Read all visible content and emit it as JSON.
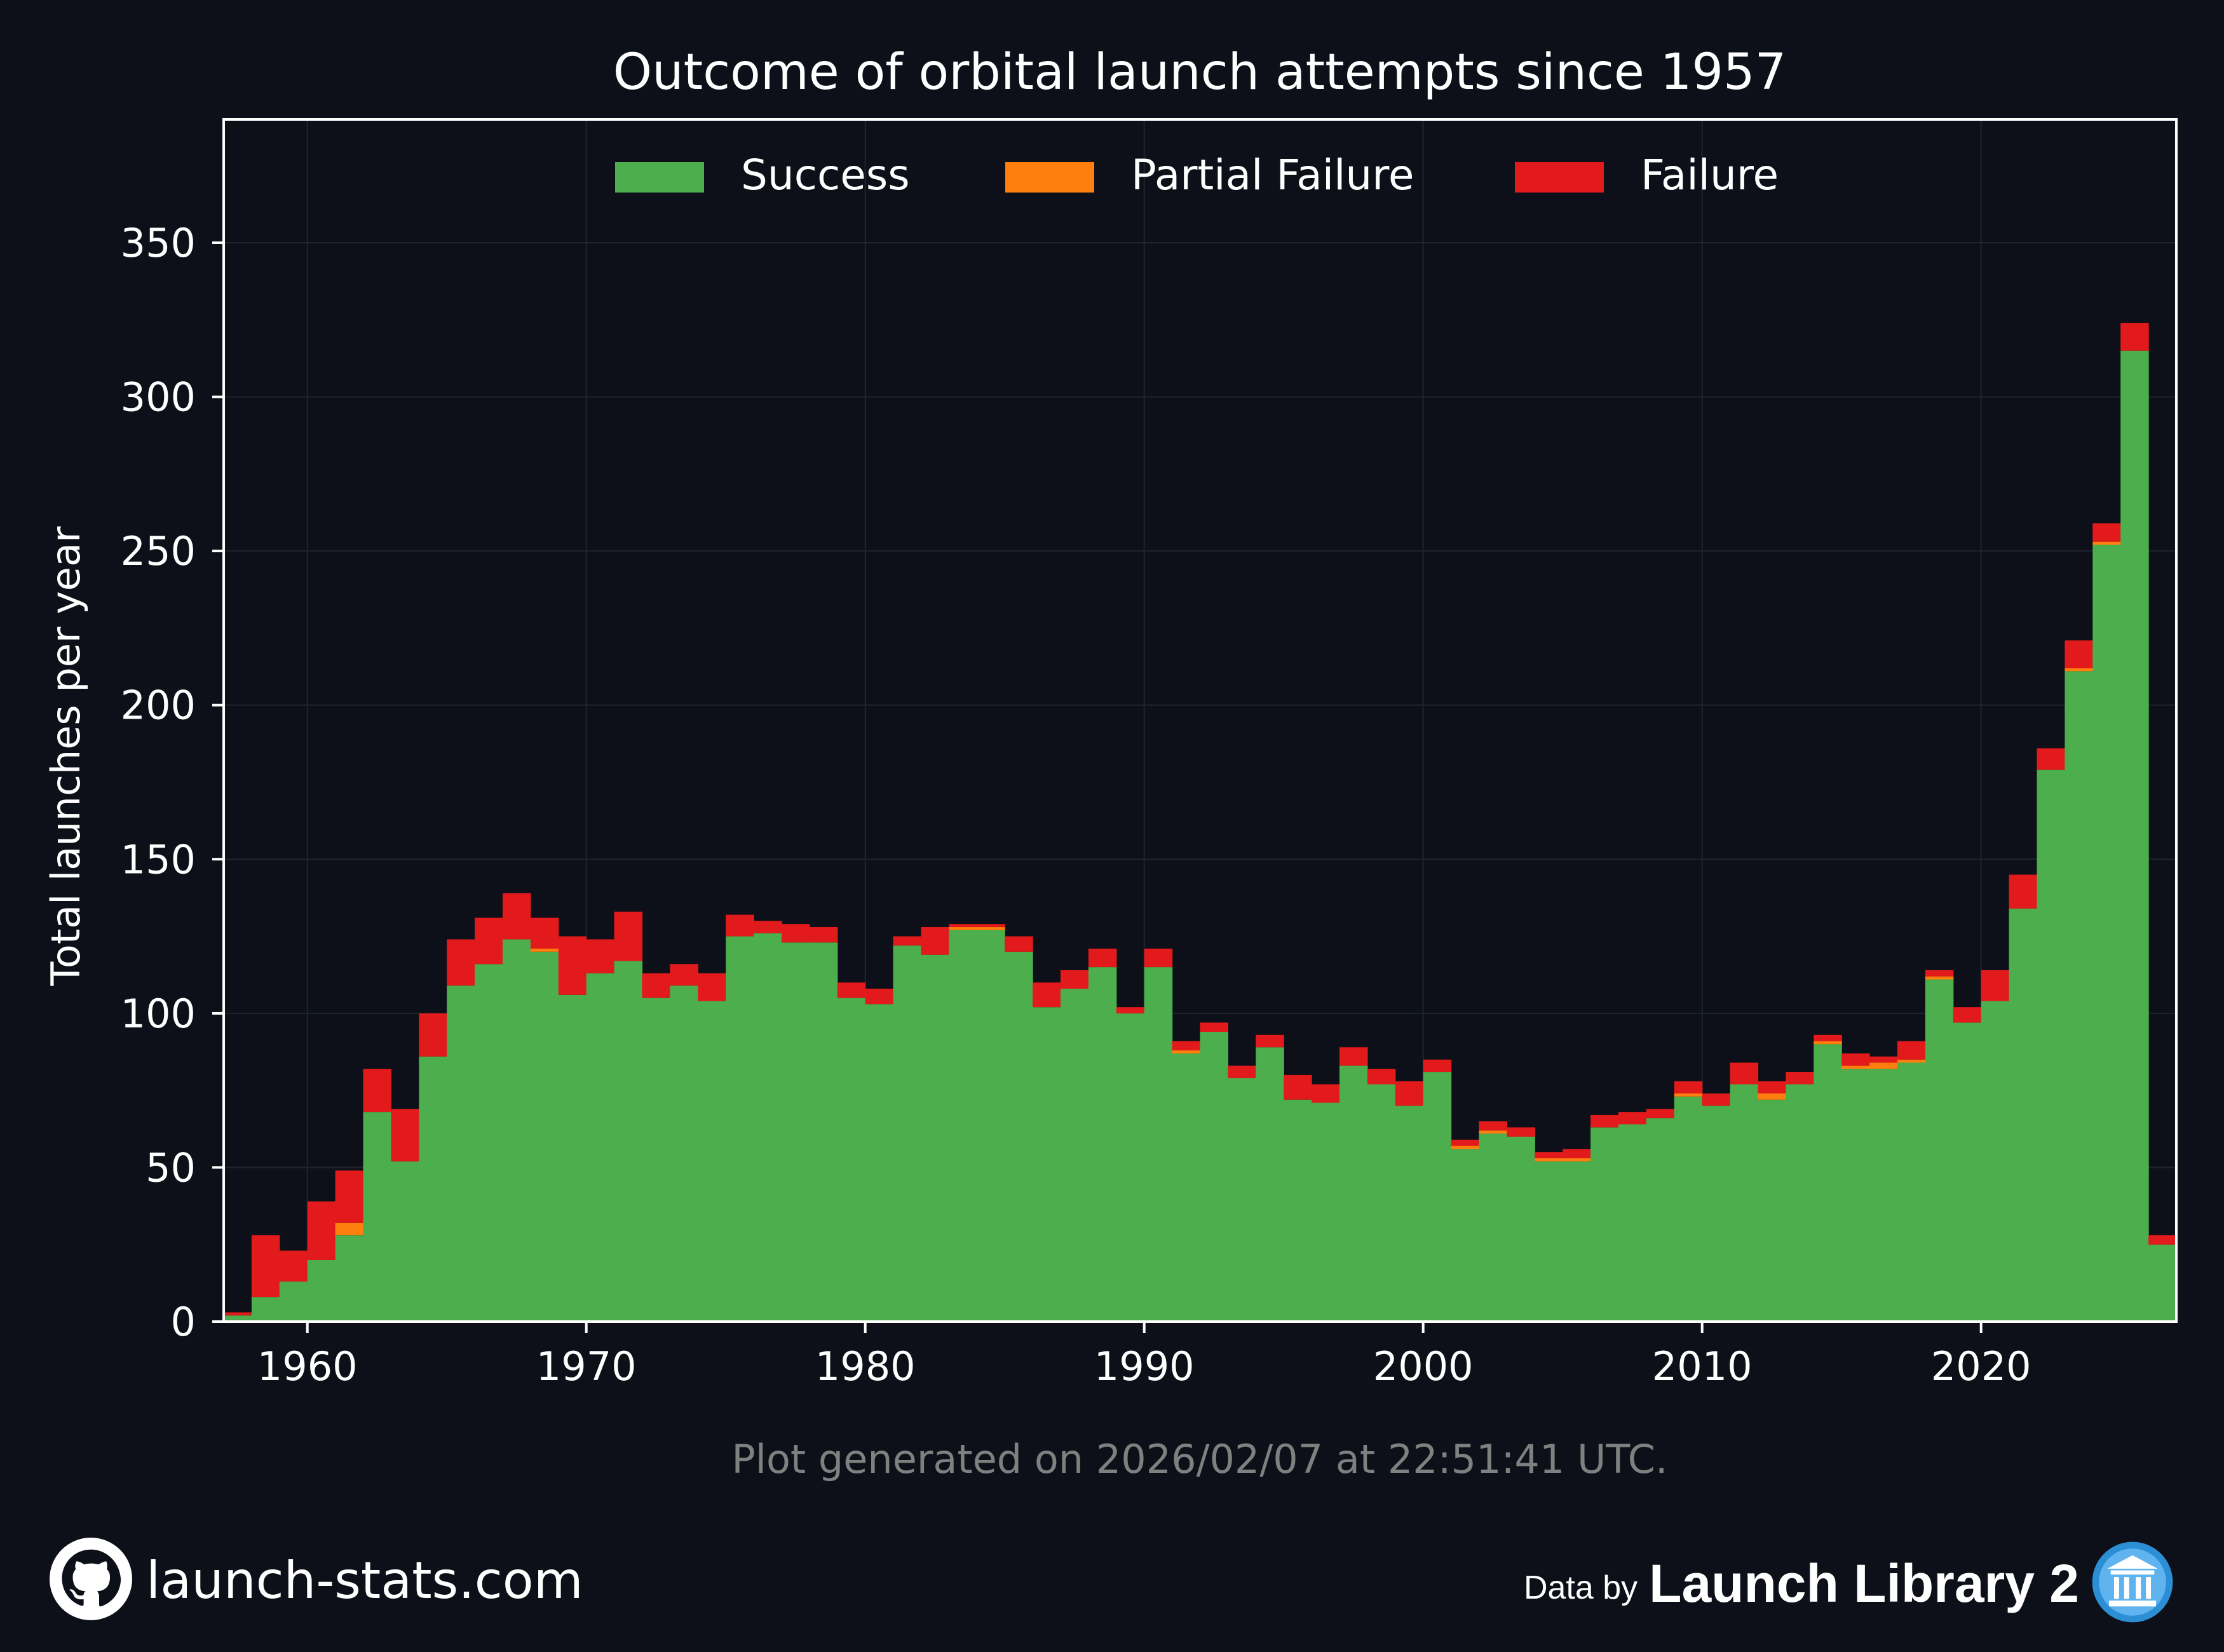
{
  "footer": {
    "note": "Plot generated on 2026/02/07 at 22:51:41 UTC.",
    "site": "launch-stats.com",
    "data_by_prefix": "Data by",
    "data_by_brand": "Launch Library 2",
    "icons": {
      "left": "github-icon",
      "right": "library-building-icon"
    }
  },
  "colors": {
    "background": "#0d1018",
    "success": "#4cae4c",
    "partial": "#ff7f0e",
    "failure": "#e31a1c",
    "text": "#ffffff",
    "note": "#808080"
  },
  "chart_data": {
    "type": "bar",
    "stacked": true,
    "title": "Outcome of orbital launch attempts since 1957",
    "xlabel": "",
    "ylabel": "Total launches per year",
    "xlim": [
      1957,
      2027
    ],
    "ylim": [
      0,
      390
    ],
    "xticks": [
      1960,
      1970,
      1980,
      1990,
      2000,
      2010,
      2020
    ],
    "yticks": [
      0,
      50,
      100,
      150,
      200,
      250,
      300,
      350
    ],
    "grid": true,
    "legend_position": "top-center",
    "categories": [
      1957,
      1958,
      1959,
      1960,
      1961,
      1962,
      1963,
      1964,
      1965,
      1966,
      1967,
      1968,
      1969,
      1970,
      1971,
      1972,
      1973,
      1974,
      1975,
      1976,
      1977,
      1978,
      1979,
      1980,
      1981,
      1982,
      1983,
      1984,
      1985,
      1986,
      1987,
      1988,
      1989,
      1990,
      1991,
      1992,
      1993,
      1994,
      1995,
      1996,
      1997,
      1998,
      1999,
      2000,
      2001,
      2002,
      2003,
      2004,
      2005,
      2006,
      2007,
      2008,
      2009,
      2010,
      2011,
      2012,
      2013,
      2014,
      2015,
      2016,
      2017,
      2018,
      2019,
      2020,
      2021,
      2022,
      2023,
      2024,
      2025,
      2026
    ],
    "series": [
      {
        "name": "Success",
        "color": "#4cae4c",
        "values": [
          2,
          8,
          13,
          20,
          28,
          68,
          52,
          86,
          109,
          116,
          124,
          120,
          106,
          113,
          117,
          105,
          109,
          104,
          125,
          126,
          123,
          123,
          105,
          103,
          122,
          119,
          127,
          127,
          120,
          102,
          108,
          115,
          100,
          115,
          87,
          94,
          79,
          89,
          72,
          71,
          83,
          77,
          70,
          81,
          56,
          61,
          60,
          52,
          52,
          63,
          64,
          66,
          73,
          70,
          77,
          72,
          77,
          90,
          82,
          82,
          84,
          111,
          97,
          104,
          134,
          179,
          211,
          252,
          315,
          25
        ]
      },
      {
        "name": "Partial Failure",
        "color": "#ff7f0e",
        "values": [
          0,
          0,
          0,
          0,
          4,
          0,
          0,
          0,
          0,
          0,
          0,
          1,
          0,
          0,
          0,
          0,
          0,
          0,
          0,
          0,
          0,
          0,
          0,
          0,
          0,
          0,
          1,
          1,
          0,
          0,
          0,
          0,
          0,
          0,
          1,
          0,
          0,
          0,
          0,
          0,
          0,
          0,
          0,
          0,
          1,
          1,
          0,
          1,
          1,
          0,
          0,
          0,
          1,
          0,
          0,
          2,
          0,
          1,
          1,
          2,
          1,
          1,
          0,
          0,
          0,
          0,
          1,
          1,
          0,
          0
        ]
      },
      {
        "name": "Failure",
        "color": "#e31a1c",
        "values": [
          1,
          20,
          10,
          19,
          17,
          14,
          17,
          14,
          15,
          15,
          15,
          10,
          19,
          11,
          16,
          8,
          7,
          9,
          7,
          4,
          6,
          5,
          5,
          5,
          3,
          9,
          1,
          1,
          5,
          8,
          6,
          6,
          2,
          6,
          3,
          3,
          4,
          4,
          8,
          6,
          6,
          5,
          8,
          4,
          2,
          3,
          3,
          2,
          3,
          4,
          4,
          3,
          4,
          4,
          7,
          4,
          4,
          2,
          4,
          2,
          6,
          2,
          5,
          10,
          11,
          7,
          9,
          6,
          9,
          3
        ]
      }
    ]
  }
}
